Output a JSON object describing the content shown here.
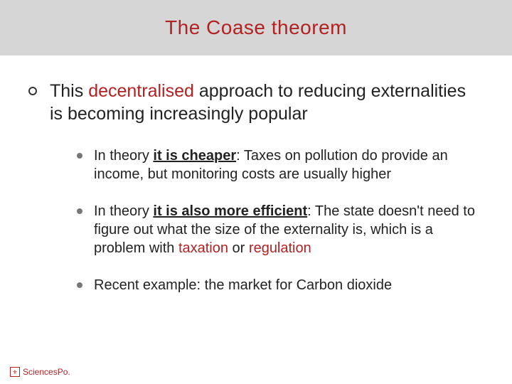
{
  "colors": {
    "header_bg": "#d6d6d6",
    "body_bg": "#ffffff",
    "accent": "#b22222",
    "text": "#222222",
    "sub_bullet": "#777777"
  },
  "typography": {
    "title_fontsize": 28,
    "main_fontsize": 25,
    "sub_fontsize": 20,
    "title_family": "Verdana",
    "sub_family": "Arial"
  },
  "title": "The Coase theorem",
  "main": {
    "pre": "This ",
    "highlight": "decentralised",
    "post": " approach to reducing externalities is becoming increasingly popular"
  },
  "subs": [
    {
      "pre": "In theory ",
      "bold_underline": "it is cheaper",
      "mid": ": Taxes on pollution do provide an income, but monitoring costs are usually higher",
      "hl1": "",
      "mid2": "",
      "hl2": "",
      "post": ""
    },
    {
      "pre": "In theory ",
      "bold_underline": "it is also more efficient",
      "mid": ": The state doesn't need to figure out what the size of the externality is, which is a problem with ",
      "hl1": "taxation",
      "mid2": " or ",
      "hl2": "regulation",
      "post": ""
    },
    {
      "pre": "Recent example: the market for Carbon dioxide",
      "bold_underline": "",
      "mid": "",
      "hl1": "",
      "mid2": "",
      "hl2": "",
      "post": ""
    }
  ],
  "footer": {
    "mark": "⚜",
    "text": "SciencesPo."
  }
}
